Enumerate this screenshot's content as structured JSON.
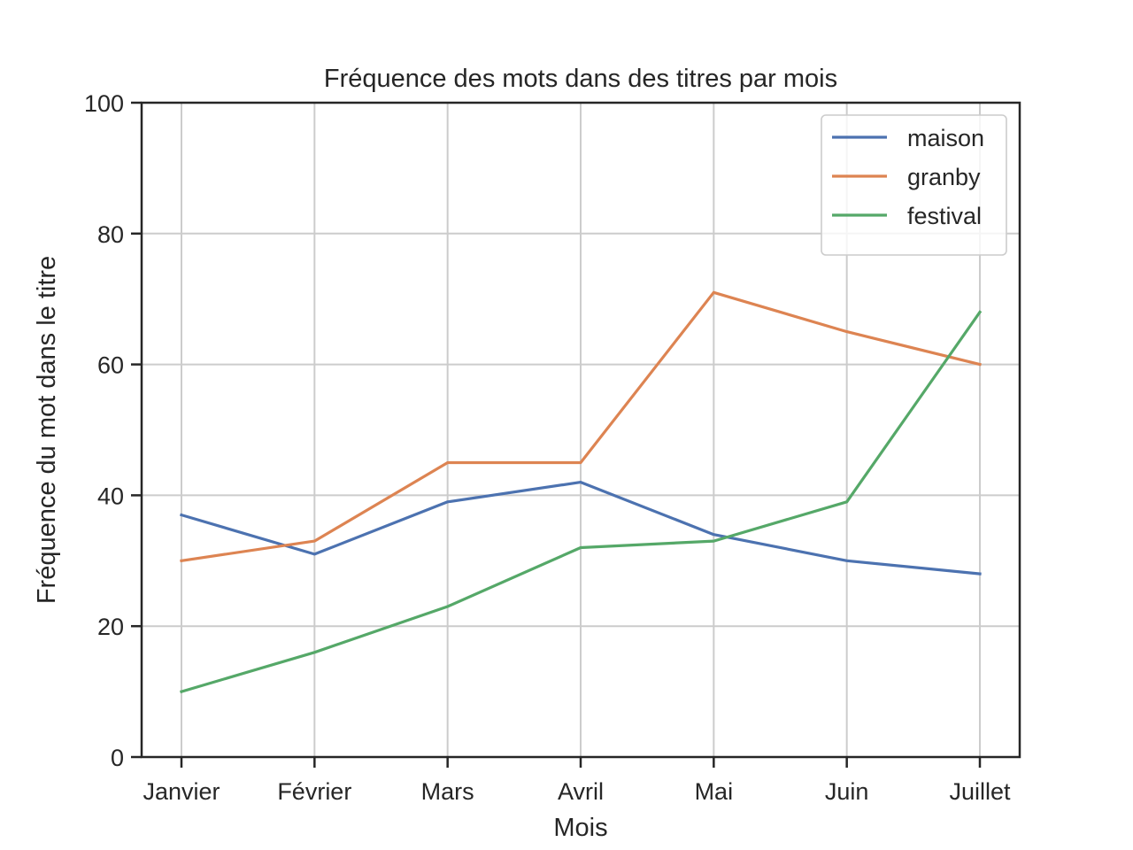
{
  "chart_data": {
    "type": "line",
    "title": "Fréquence des mots dans des titres par mois",
    "xlabel": "Mois",
    "ylabel": "Fréquence du mot dans le titre",
    "categories": [
      "Janvier",
      "Février",
      "Mars",
      "Avril",
      "Mai",
      "Juin",
      "Juillet"
    ],
    "ylim": [
      0,
      100
    ],
    "yticks": [
      0,
      20,
      40,
      60,
      80,
      100
    ],
    "grid": true,
    "legend_position": "top-right",
    "series": [
      {
        "name": "maison",
        "color": "#4c72b0",
        "values": [
          37,
          31,
          39,
          42,
          34,
          30,
          28
        ]
      },
      {
        "name": "granby",
        "color": "#dd8452",
        "values": [
          30,
          33,
          45,
          45,
          71,
          65,
          60
        ]
      },
      {
        "name": "festival",
        "color": "#55a868",
        "values": [
          10,
          16,
          23,
          32,
          33,
          39,
          68
        ]
      }
    ]
  }
}
